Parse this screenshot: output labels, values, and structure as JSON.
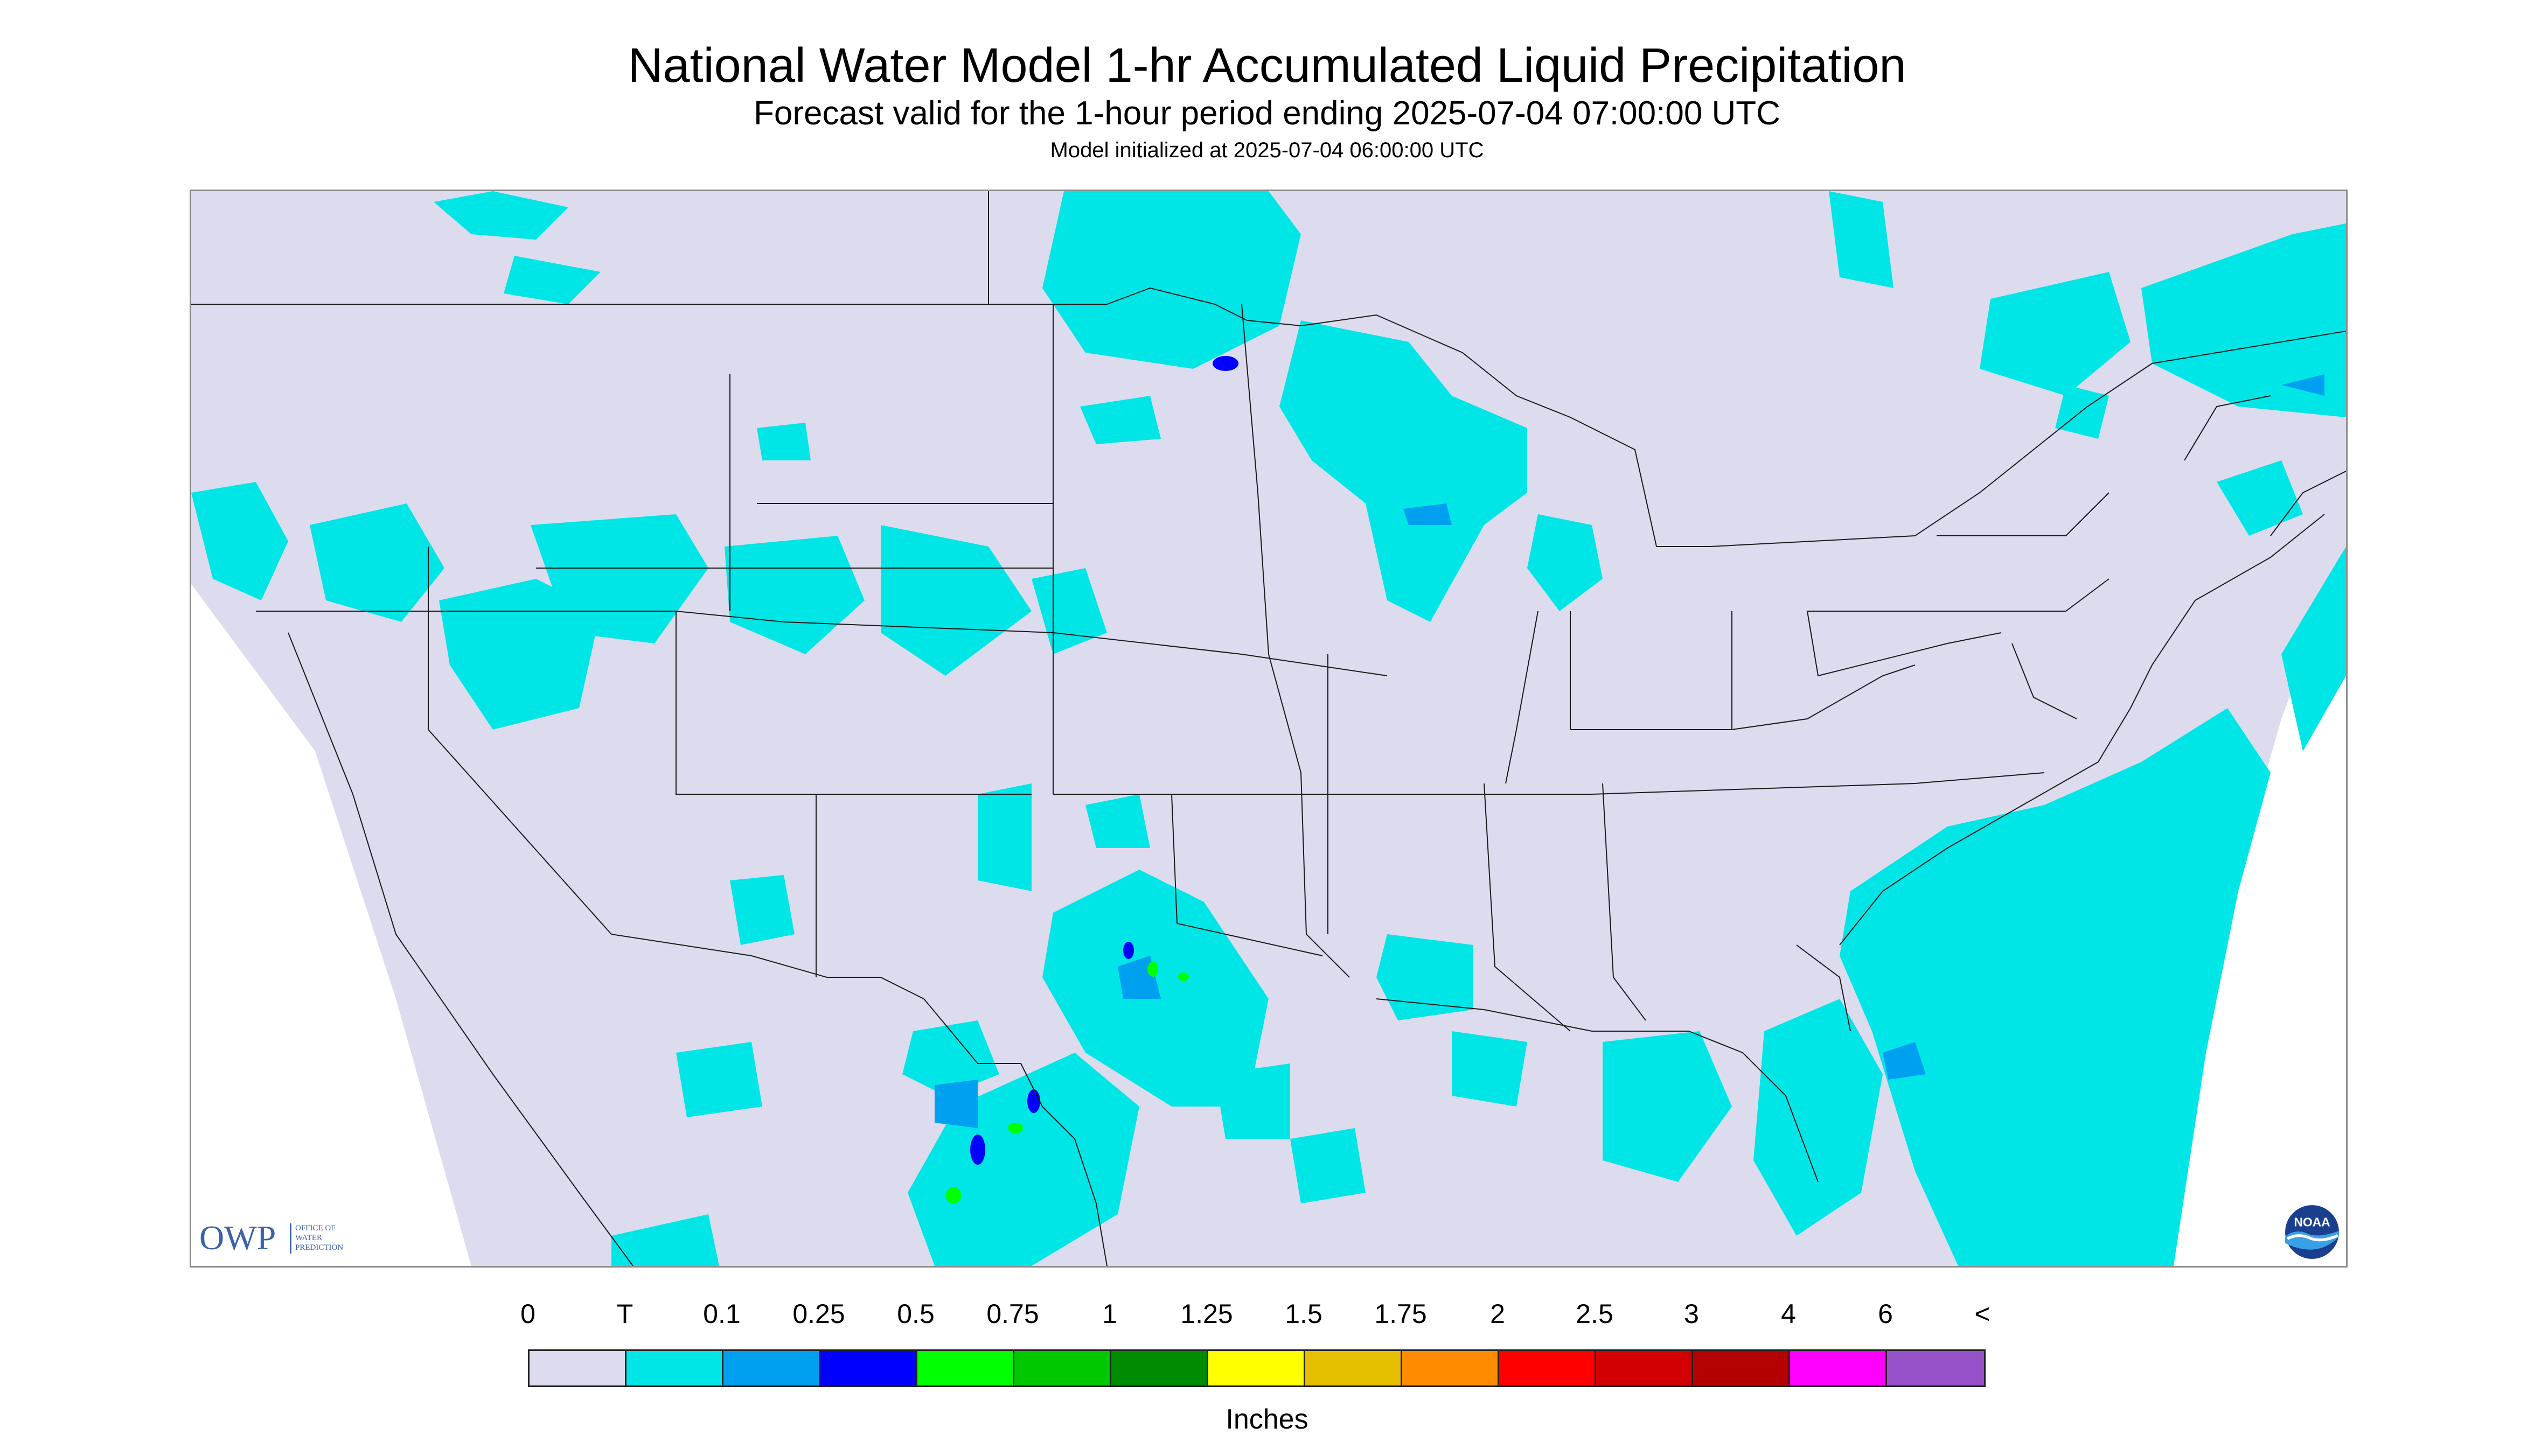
{
  "header": {
    "title": "National Water Model 1-hr Accumulated Liquid Precipitation",
    "subtitle": "Forecast valid for the 1-hour period ending 2025-07-04 07:00:00 UTC",
    "initialized": "Model initialized at 2025-07-04 06:00:00 UTC"
  },
  "logos": {
    "owp_letters": "OWP",
    "owp_text": [
      "OFFICE OF",
      "WATER",
      "PREDICTION"
    ],
    "noaa_text": "NOAA"
  },
  "colors": {
    "land": "#dcdcee",
    "outside": "#ffffff",
    "boundary": "#1a1a1a",
    "trace": "#00e6e6",
    "light": "#00a0f0",
    "moderate": "#0000ff",
    "heavy": "#00ff00"
  },
  "legend": {
    "labels": [
      "0",
      "T",
      "0.1",
      "0.25",
      "0.5",
      "0.75",
      "1",
      "1.25",
      "1.5",
      "1.75",
      "2",
      "2.5",
      "3",
      "4",
      "6",
      "<"
    ],
    "colors": [
      "#dcdcee",
      "#00e6e6",
      "#00a0f0",
      "#0000ff",
      "#00ff00",
      "#00c800",
      "#008c00",
      "#ffff00",
      "#e6be00",
      "#ff8c00",
      "#ff0000",
      "#d20000",
      "#b40000",
      "#ff00ff",
      "#9650c8"
    ],
    "unit": "Inches"
  }
}
